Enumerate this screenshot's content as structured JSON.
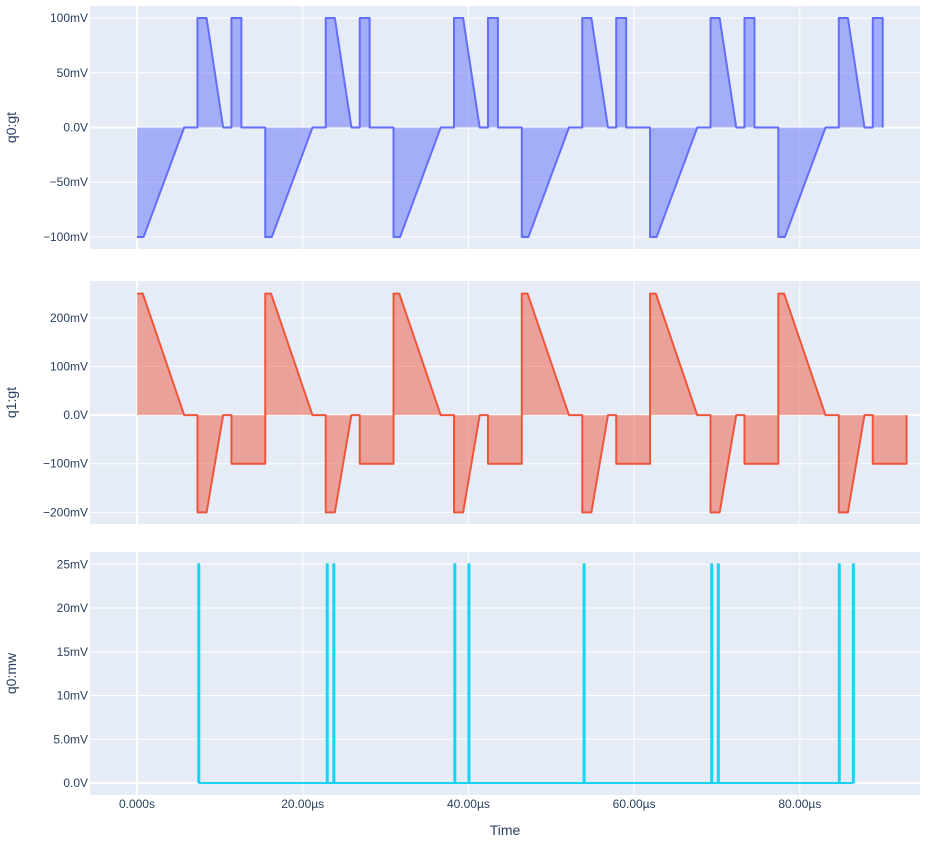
{
  "chart_data": {
    "type": "line",
    "xlabel": "Time",
    "xlim": [
      -5.67,
      94.5
    ],
    "x_unit": "µs",
    "x_ticks": [
      {
        "value": 0,
        "label": "0.000s"
      },
      {
        "value": 20,
        "label": "20.00µs"
      },
      {
        "value": 40,
        "label": "40.00µs"
      },
      {
        "value": 60,
        "label": "60.00µs"
      },
      {
        "value": 80,
        "label": "80.00µs"
      }
    ],
    "grid": true,
    "legend": "none",
    "panels": [
      {
        "name": "q0-gt",
        "ylabel": "q0:gt",
        "ylim": [
          -111,
          111
        ],
        "y_unit": "mV",
        "color": "#636efa",
        "fill": "tozeroy",
        "fill_color": "rgba(99,110,250,0.5)",
        "y_ticks": [
          {
            "value": 100,
            "label": "100mV"
          },
          {
            "value": 50,
            "label": "50mV"
          },
          {
            "value": 0,
            "label": "0.0V"
          },
          {
            "value": -50,
            "label": "−50mV"
          },
          {
            "value": -100,
            "label": "−100mV"
          }
        ],
        "cycle": {
          "period": 15.48,
          "count": 6,
          "points": [
            [
              0,
              -100
            ],
            [
              0.8,
              -100
            ],
            [
              5.7,
              0
            ],
            [
              7.3,
              0
            ],
            [
              7.3,
              100
            ],
            [
              8.4,
              100
            ],
            [
              10.4,
              0
            ],
            [
              11.4,
              0
            ],
            [
              11.4,
              100
            ],
            [
              12.6,
              100
            ],
            [
              12.6,
              0
            ],
            [
              15.48,
              0
            ]
          ],
          "last_cycle_end": 12.6
        }
      },
      {
        "name": "q1-gt",
        "ylabel": "q1:gt",
        "ylim": [
          -224,
          276
        ],
        "y_unit": "mV",
        "color": "#EF553B",
        "fill": "tozeroy",
        "fill_color": "rgba(239,85,59,0.5)",
        "y_ticks": [
          {
            "value": 200,
            "label": "200mV"
          },
          {
            "value": 100,
            "label": "100mV"
          },
          {
            "value": 0,
            "label": "0.0V"
          },
          {
            "value": -100,
            "label": "−100mV"
          },
          {
            "value": -200,
            "label": "−200mV"
          }
        ],
        "cycle": {
          "period": 15.48,
          "count": 6,
          "points": [
            [
              0,
              250
            ],
            [
              0.7,
              250
            ],
            [
              5.7,
              0
            ],
            [
              7.3,
              0
            ],
            [
              7.3,
              -200
            ],
            [
              8.4,
              -200
            ],
            [
              10.4,
              0
            ],
            [
              11.4,
              0
            ],
            [
              11.4,
              -100
            ],
            [
              15.48,
              -100
            ]
          ],
          "last_cycle_end": 15.48
        }
      },
      {
        "name": "q0-mw",
        "ylabel": "q0:mw",
        "ylim": [
          -1.37,
          26.4
        ],
        "y_unit": "mV",
        "color": "#19d3f3",
        "fill": "none",
        "y_ticks": [
          {
            "value": 25,
            "label": "25mV"
          },
          {
            "value": 20,
            "label": "20mV"
          },
          {
            "value": 15,
            "label": "15mV"
          },
          {
            "value": 10,
            "label": "10mV"
          },
          {
            "value": 5,
            "label": "5.0mV"
          },
          {
            "value": 0,
            "label": "0.0V"
          }
        ],
        "spikes": {
          "height": 25,
          "times": [
            7.4,
            22.9,
            23.7,
            38.3,
            40.0,
            53.9,
            69.3,
            70.1,
            84.7,
            86.4
          ]
        }
      }
    ]
  }
}
